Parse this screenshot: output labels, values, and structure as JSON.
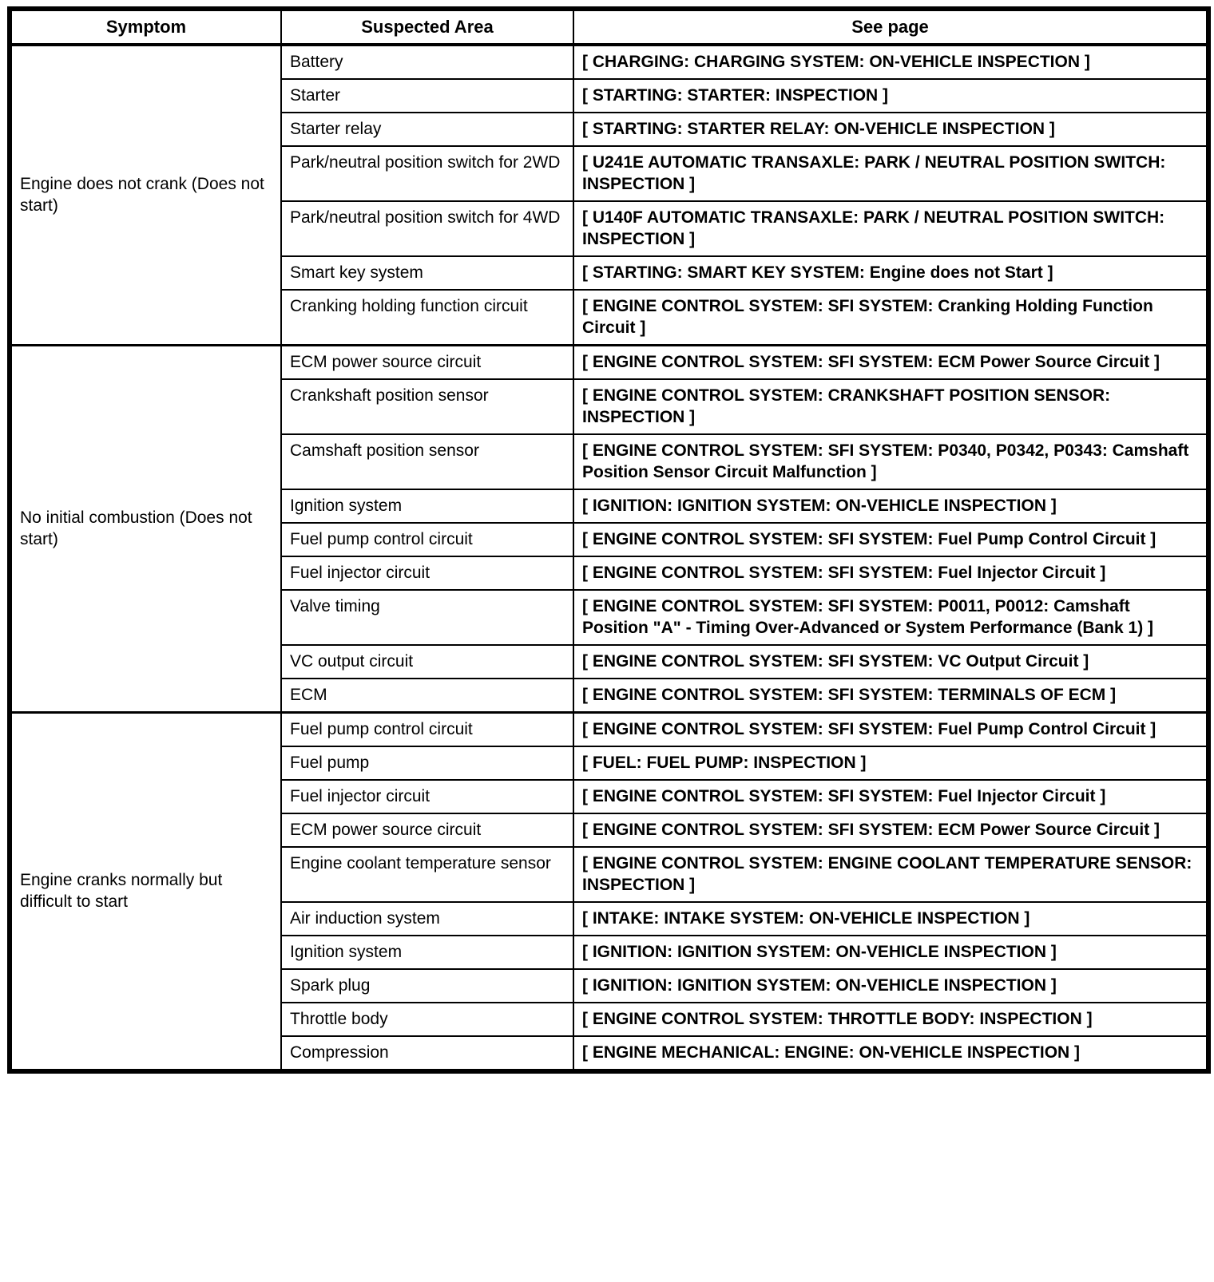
{
  "table": {
    "columns": [
      "Symptom",
      "Suspected Area",
      "See page"
    ],
    "groups": [
      {
        "symptom": "Engine does not crank (Does not start)",
        "rows": [
          {
            "area": "Battery",
            "page": "[ CHARGING: CHARGING SYSTEM: ON-VEHICLE INSPECTION ]"
          },
          {
            "area": "Starter",
            "page": "[ STARTING: STARTER: INSPECTION ]"
          },
          {
            "area": "Starter relay",
            "page": "[ STARTING: STARTER RELAY: ON-VEHICLE INSPECTION ]"
          },
          {
            "area": "Park/neutral position switch for 2WD",
            "page": "[ U241E AUTOMATIC TRANSAXLE: PARK / NEUTRAL POSITION SWITCH: INSPECTION ]"
          },
          {
            "area": "Park/neutral position switch for 4WD",
            "page": "[ U140F AUTOMATIC TRANSAXLE: PARK / NEUTRAL POSITION SWITCH: INSPECTION ]"
          },
          {
            "area": "Smart key system",
            "page": "[ STARTING: SMART KEY SYSTEM: Engine does not Start ]"
          },
          {
            "area": "Cranking holding function circuit",
            "page": "[ ENGINE CONTROL SYSTEM: SFI SYSTEM: Cranking Holding Function Circuit ]"
          }
        ]
      },
      {
        "symptom": "No initial combustion (Does not start)",
        "rows": [
          {
            "area": "ECM power source circuit",
            "page": "[ ENGINE CONTROL SYSTEM: SFI SYSTEM: ECM Power Source Circuit ]"
          },
          {
            "area": "Crankshaft position sensor",
            "page": "[ ENGINE CONTROL SYSTEM: CRANKSHAFT POSITION SENSOR: INSPECTION ]"
          },
          {
            "area": "Camshaft position sensor",
            "page": "[ ENGINE CONTROL SYSTEM: SFI SYSTEM: P0340, P0342, P0343: Camshaft Position Sensor Circuit Malfunction ]"
          },
          {
            "area": "Ignition system",
            "page": "[ IGNITION: IGNITION SYSTEM: ON-VEHICLE INSPECTION ]"
          },
          {
            "area": "Fuel pump control circuit",
            "page": "[ ENGINE CONTROL SYSTEM: SFI SYSTEM: Fuel Pump Control Circuit ]"
          },
          {
            "area": "Fuel injector circuit",
            "page": "[ ENGINE CONTROL SYSTEM: SFI SYSTEM: Fuel Injector Circuit ]"
          },
          {
            "area": "Valve timing",
            "page": "[ ENGINE CONTROL SYSTEM: SFI SYSTEM: P0011, P0012: Camshaft Position \"A\" - Timing Over-Advanced or System Performance (Bank 1) ]"
          },
          {
            "area": "VC output circuit",
            "page": "[ ENGINE CONTROL SYSTEM: SFI SYSTEM: VC Output Circuit ]"
          },
          {
            "area": "ECM",
            "page": "[ ENGINE CONTROL SYSTEM: SFI SYSTEM: TERMINALS OF ECM ]"
          }
        ]
      },
      {
        "symptom": "Engine cranks normally but difficult to start",
        "rows": [
          {
            "area": "Fuel pump control circuit",
            "page": "[ ENGINE CONTROL SYSTEM: SFI SYSTEM: Fuel Pump Control Circuit ]"
          },
          {
            "area": "Fuel pump",
            "page": "[ FUEL: FUEL PUMP: INSPECTION ]"
          },
          {
            "area": "Fuel injector circuit",
            "page": "[ ENGINE CONTROL SYSTEM: SFI SYSTEM: Fuel Injector Circuit ]"
          },
          {
            "area": "ECM power source circuit",
            "page": "[ ENGINE CONTROL SYSTEM: SFI SYSTEM: ECM Power Source Circuit ]"
          },
          {
            "area": "Engine coolant temperature sensor",
            "page": "[ ENGINE CONTROL SYSTEM: ENGINE COOLANT TEMPERATURE SENSOR: INSPECTION ]"
          },
          {
            "area": "Air induction system",
            "page": "[ INTAKE: INTAKE SYSTEM: ON-VEHICLE INSPECTION ]"
          },
          {
            "area": "Ignition system",
            "page": "[ IGNITION: IGNITION SYSTEM: ON-VEHICLE INSPECTION ]"
          },
          {
            "area": "Spark plug",
            "page": "[ IGNITION: IGNITION SYSTEM: ON-VEHICLE INSPECTION ]"
          },
          {
            "area": "Throttle body",
            "page": "[ ENGINE CONTROL SYSTEM: THROTTLE BODY: INSPECTION ]"
          },
          {
            "area": "Compression",
            "page": "[ ENGINE MECHANICAL: ENGINE: ON-VEHICLE INSPECTION ]"
          }
        ]
      }
    ]
  }
}
